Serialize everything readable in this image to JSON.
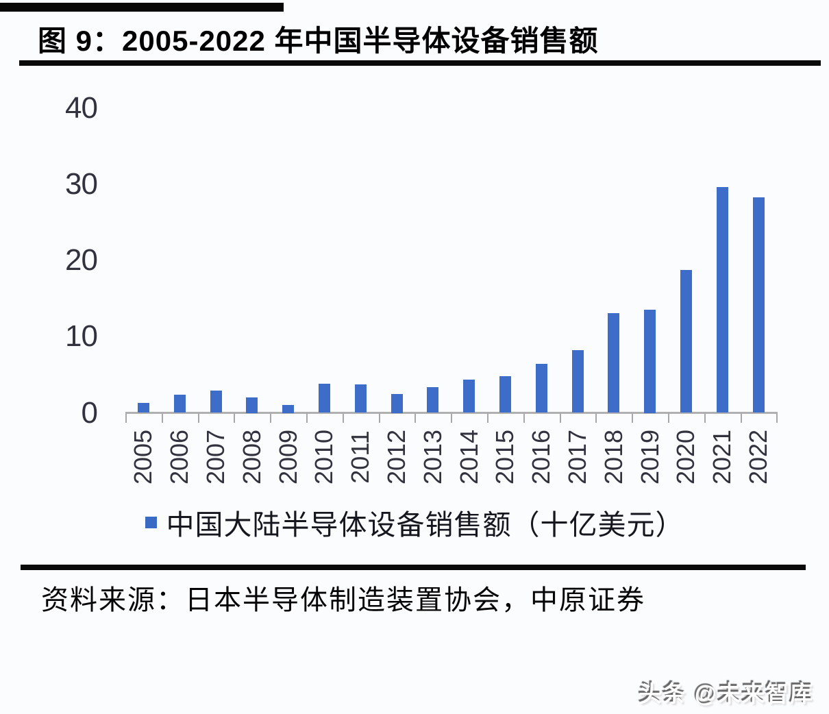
{
  "title": "图 9：2005-2022 年中国半导体设备销售额",
  "chart_data": {
    "type": "bar",
    "title": "2005-2022 年中国半导体设备销售额",
    "categories": [
      "2005",
      "2006",
      "2007",
      "2008",
      "2009",
      "2010",
      "2011",
      "2012",
      "2013",
      "2014",
      "2015",
      "2016",
      "2017",
      "2018",
      "2019",
      "2020",
      "2021",
      "2022"
    ],
    "values": [
      1.3,
      2.4,
      2.9,
      2.0,
      1.0,
      3.8,
      3.7,
      2.5,
      3.4,
      4.4,
      4.8,
      6.4,
      8.2,
      13.1,
      13.5,
      18.7,
      29.6,
      28.3
    ],
    "series_name": "中国大陆半导体设备销售额（十亿美元）",
    "xlabel": "",
    "ylabel": "",
    "ylim": [
      0,
      40
    ],
    "yticks": [
      0,
      10,
      20,
      30,
      40
    ],
    "grid": false,
    "legend_position": "bottom",
    "bar_color": "#3d6dc8",
    "axis_color": "#b0b0b0",
    "tick_label_color": "#32323e"
  },
  "legend": {
    "label": "中国大陆半导体设备销售额（十亿美元）",
    "swatch_color": "#3a6bc4"
  },
  "source": {
    "label": "资料来源：日本半导体制造装置协会，中原证券"
  },
  "watermark": {
    "text": "头条 @未来智库"
  }
}
